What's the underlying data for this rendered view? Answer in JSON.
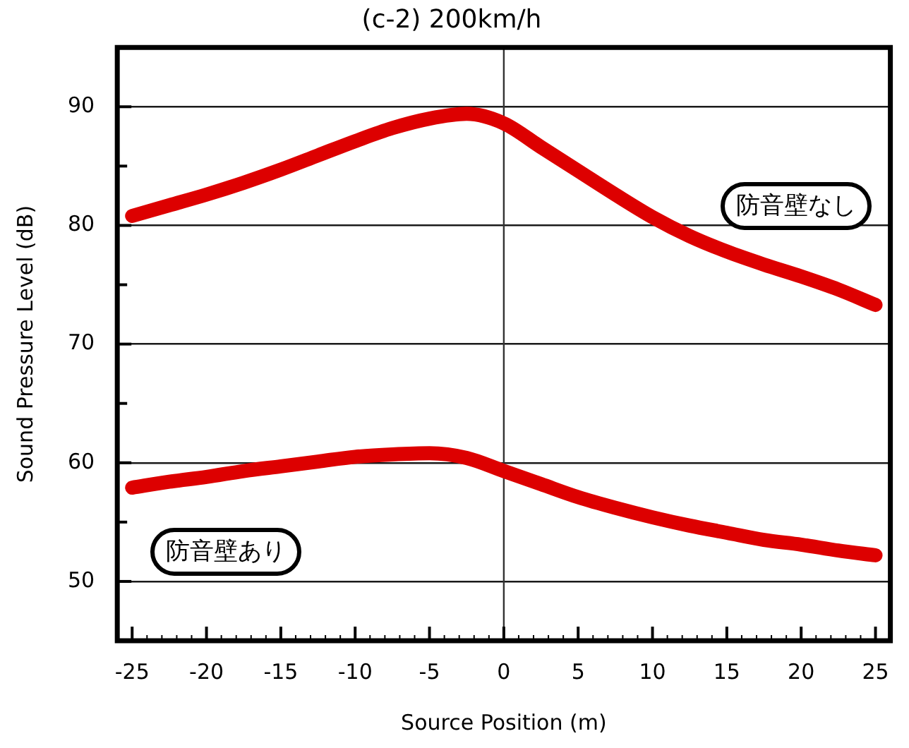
{
  "chart_data": {
    "type": "line",
    "title": "(c-2) 200km/h",
    "xlabel": "Source Position (m)",
    "ylabel": "Sound Pressure Level (dB)",
    "x": [
      -25,
      -22.5,
      -20,
      -17.5,
      -15,
      -12.5,
      -10,
      -7.5,
      -5,
      -2.5,
      0,
      2.5,
      5,
      7.5,
      10,
      12.5,
      15,
      17.5,
      20,
      22.5,
      25
    ],
    "series": [
      {
        "name": "防音壁なし",
        "color": "#dd0000",
        "values": [
          80.8,
          81.7,
          82.6,
          83.6,
          84.7,
          85.9,
          87.1,
          88.2,
          89.0,
          89.4,
          88.6,
          86.6,
          84.6,
          82.6,
          80.7,
          79.1,
          77.8,
          76.7,
          75.7,
          74.6,
          73.3
        ]
      },
      {
        "name": "防音壁あり",
        "color": "#dd0000",
        "values": [
          57.9,
          58.4,
          58.8,
          59.3,
          59.7,
          60.1,
          60.5,
          60.7,
          60.8,
          60.4,
          59.3,
          58.2,
          57.1,
          56.2,
          55.4,
          54.7,
          54.1,
          53.5,
          53.1,
          52.6,
          52.2
        ]
      }
    ],
    "xlim": [
      -26,
      26
    ],
    "xticks": [
      -25,
      {
        "value": -24,
        "label": null
      },
      {
        "value": -23,
        "label": null
      },
      {
        "value": -22,
        "label": null
      },
      {
        "value": -21,
        "label": null
      },
      -20,
      {
        "value": -19,
        "label": null
      },
      {
        "value": -18,
        "label": null
      },
      {
        "value": -17,
        "label": null
      },
      {
        "value": -16,
        "label": null
      },
      -15,
      {
        "value": -14,
        "label": null
      },
      {
        "value": -13,
        "label": null
      },
      {
        "value": -12,
        "label": null
      },
      {
        "value": -11,
        "label": null
      },
      -10,
      {
        "value": -9,
        "label": null
      },
      {
        "value": -8,
        "label": null
      },
      {
        "value": -7,
        "label": null
      },
      {
        "value": -6,
        "label": null
      },
      -5,
      {
        "value": -4,
        "label": null
      },
      {
        "value": -3,
        "label": null
      },
      {
        "value": -2,
        "label": null
      },
      {
        "value": -1,
        "label": null
      },
      0,
      {
        "value": 1,
        "label": null
      },
      {
        "value": 2,
        "label": null
      },
      {
        "value": 3,
        "label": null
      },
      {
        "value": 4,
        "label": null
      },
      5,
      {
        "value": 6,
        "label": null
      },
      {
        "value": 7,
        "label": null
      },
      {
        "value": 8,
        "label": null
      },
      {
        "value": 9,
        "label": null
      },
      10,
      {
        "value": 11,
        "label": null
      },
      {
        "value": 12,
        "label": null
      },
      {
        "value": 13,
        "label": null
      },
      {
        "value": 14,
        "label": null
      },
      15,
      {
        "value": 16,
        "label": null
      },
      {
        "value": 17,
        "label": null
      },
      {
        "value": 18,
        "label": null
      },
      {
        "value": 19,
        "label": null
      },
      20,
      {
        "value": 21,
        "label": null
      },
      {
        "value": 22,
        "label": null
      },
      {
        "value": 23,
        "label": null
      },
      {
        "value": 24,
        "label": null
      },
      25
    ],
    "ylim": [
      45,
      95
    ],
    "yticks": [
      50,
      {
        "value": 55,
        "label": null
      },
      60,
      {
        "value": 65,
        "label": null
      },
      70,
      {
        "value": 75,
        "label": null
      },
      80,
      {
        "value": 85,
        "label": null
      },
      90
    ],
    "grid": "y",
    "ref_lines": [
      {
        "axis": "x",
        "value": 0,
        "color": "#333333"
      }
    ],
    "marker": "none",
    "line_style": "solid"
  }
}
